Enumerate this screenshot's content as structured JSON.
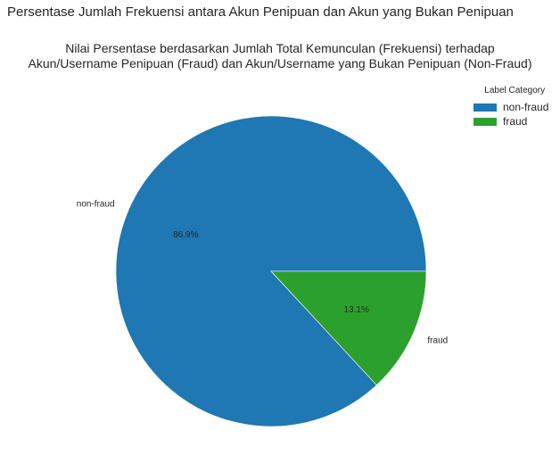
{
  "suptitle": "Persentase Jumlah Frekuensi antara Akun Penipuan dan Akun yang Bukan Penipuan",
  "title_line1": "Nilai Persentase berdasarkan Jumlah Total Kemunculan (Frekuensi) terhadap",
  "title_line2": "Akun/Username Penipuan (Fraud) dan Akun/Username yang Bukan Penipuan (Non-Fraud)",
  "legend": {
    "title": "Label Category",
    "placement": "top-right",
    "items": [
      {
        "label": "non-fraud",
        "color": "#1f77b4"
      },
      {
        "label": "fraud",
        "color": "#2ca02c"
      }
    ]
  },
  "chart_data": {
    "type": "pie",
    "title": "Nilai Persentase berdasarkan Jumlah Total Kemunculan (Frekuensi) terhadap Akun/Username Penipuan (Fraud) dan Akun/Username yang Bukan Penipuan (Non-Fraud)",
    "slices": [
      {
        "label": "non-fraud",
        "value": 86.9,
        "pct_label": "86.9%",
        "color": "#1f77b4"
      },
      {
        "label": "fraud",
        "value": 13.1,
        "pct_label": "13.1%",
        "color": "#2ca02c"
      }
    ],
    "start_angle_deg": 0,
    "direction": "counterclockwise"
  }
}
